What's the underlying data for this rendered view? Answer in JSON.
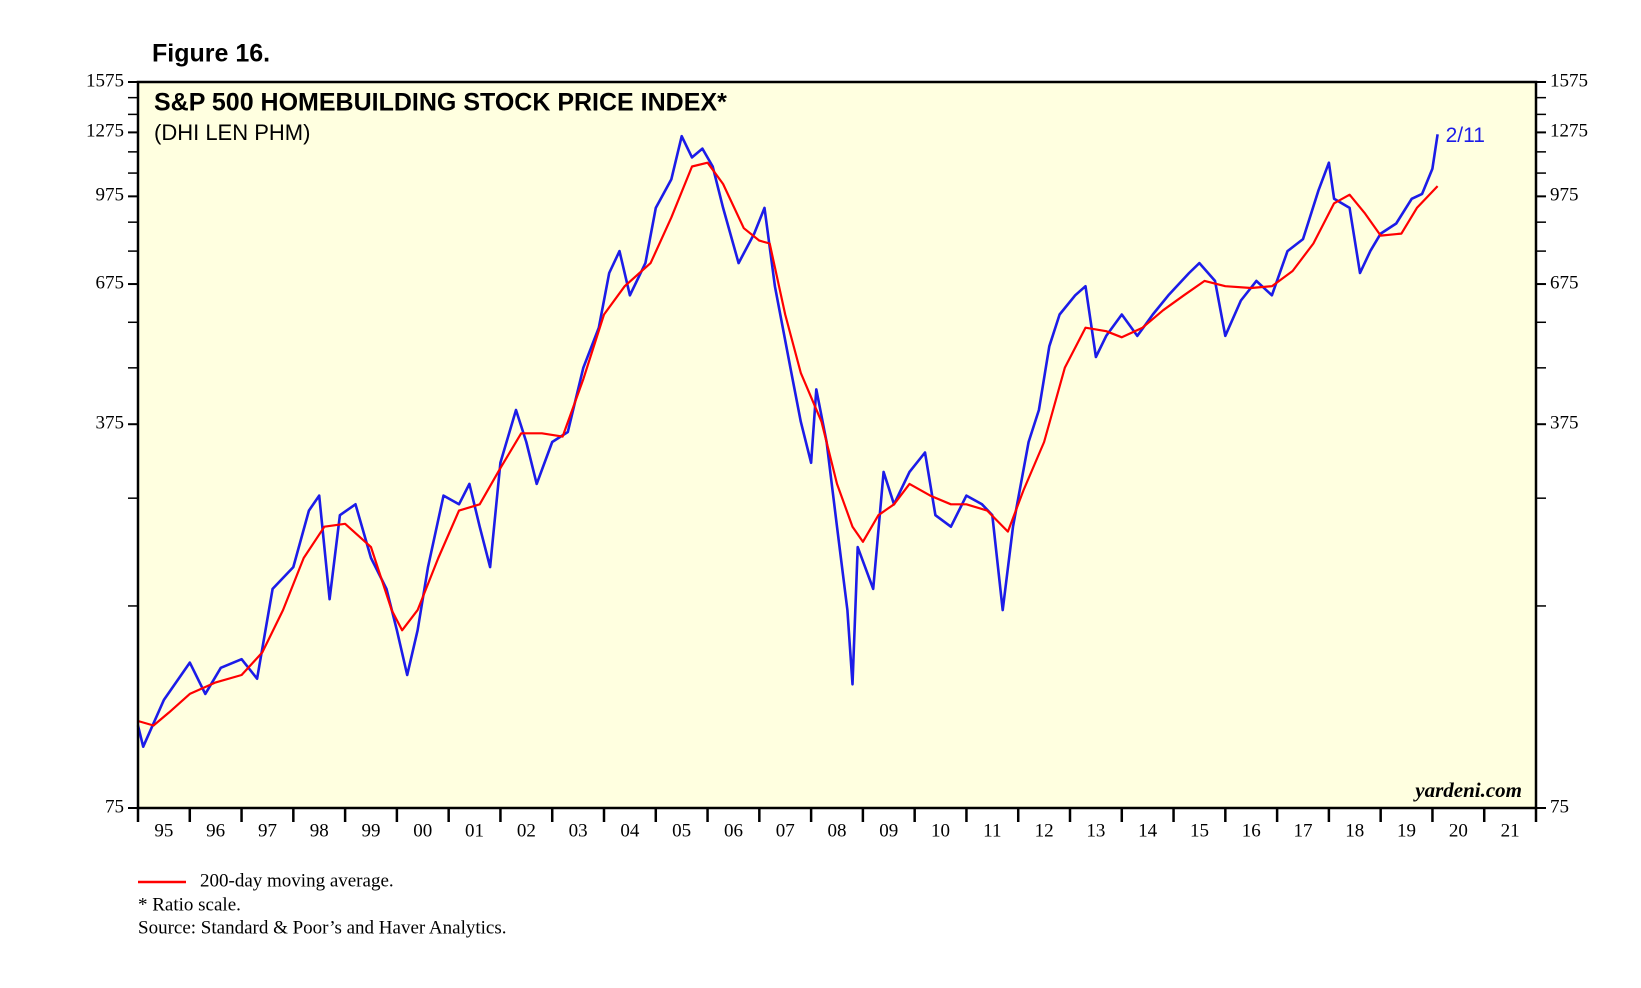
{
  "chart_data": {
    "type": "line",
    "figure_label": "Figure 16.",
    "title": "S&P 500 HOMEBUILDING STOCK PRICE INDEX*",
    "subtitle": "(DHI LEN PHM)",
    "annotation": "2/11",
    "watermark": "yardeni.com",
    "notes": [
      "* Ratio scale.",
      "Source: Standard & Poor’s and Haver Analytics."
    ],
    "log_scale": true,
    "background": "#ffffe0",
    "xlim": [
      1995,
      2022
    ],
    "xticks": [
      {
        "value": 1995.5,
        "label": "95"
      },
      {
        "value": 1996.5,
        "label": "96"
      },
      {
        "value": 1997.5,
        "label": "97"
      },
      {
        "value": 1998.5,
        "label": "98"
      },
      {
        "value": 1999.5,
        "label": "99"
      },
      {
        "value": 2000.5,
        "label": "00"
      },
      {
        "value": 2001.5,
        "label": "01"
      },
      {
        "value": 2002.5,
        "label": "02"
      },
      {
        "value": 2003.5,
        "label": "03"
      },
      {
        "value": 2004.5,
        "label": "04"
      },
      {
        "value": 2005.5,
        "label": "05"
      },
      {
        "value": 2006.5,
        "label": "06"
      },
      {
        "value": 2007.5,
        "label": "07"
      },
      {
        "value": 2008.5,
        "label": "08"
      },
      {
        "value": 2009.5,
        "label": "09"
      },
      {
        "value": 2010.5,
        "label": "10"
      },
      {
        "value": 2011.5,
        "label": "11"
      },
      {
        "value": 2012.5,
        "label": "12"
      },
      {
        "value": 2013.5,
        "label": "13"
      },
      {
        "value": 2014.5,
        "label": "14"
      },
      {
        "value": 2015.5,
        "label": "15"
      },
      {
        "value": 2016.5,
        "label": "16"
      },
      {
        "value": 2017.5,
        "label": "17"
      },
      {
        "value": 2018.5,
        "label": "18"
      },
      {
        "value": 2019.5,
        "label": "19"
      },
      {
        "value": 2020.5,
        "label": "20"
      },
      {
        "value": 2021.5,
        "label": "21"
      }
    ],
    "xminor_ticks": [
      1995,
      1996,
      1997,
      1998,
      1999,
      2000,
      2001,
      2002,
      2003,
      2004,
      2005,
      2006,
      2007,
      2008,
      2009,
      2010,
      2011,
      2012,
      2013,
      2014,
      2015,
      2016,
      2017,
      2018,
      2019,
      2020,
      2021,
      2022
    ],
    "ylim": [
      75,
      1575
    ],
    "yticks": [
      75,
      375,
      675,
      975,
      1275,
      1575
    ],
    "yminor_ticks": [
      175,
      275,
      475,
      575,
      775,
      875,
      1075,
      1175,
      1375,
      1475
    ],
    "series": [
      {
        "name": "S&P 500 Homebuilding",
        "color": "#1c1ce8",
        "in_legend": false,
        "x": [
          1995.0,
          1995.1,
          1995.5,
          1996.0,
          1996.3,
          1996.6,
          1997.0,
          1997.3,
          1997.6,
          1998.0,
          1998.3,
          1998.5,
          1998.7,
          1998.9,
          1999.2,
          1999.5,
          1999.8,
          2000.0,
          2000.2,
          2000.4,
          2000.6,
          2000.9,
          2001.2,
          2001.4,
          2001.6,
          2001.8,
          2002.0,
          2002.3,
          2002.5,
          2002.7,
          2003.0,
          2003.3,
          2003.6,
          2003.9,
          2004.1,
          2004.3,
          2004.5,
          2004.8,
          2005.0,
          2005.3,
          2005.5,
          2005.7,
          2005.9,
          2006.1,
          2006.3,
          2006.6,
          2006.9,
          2007.1,
          2007.3,
          2007.6,
          2007.8,
          2008.0,
          2008.1,
          2008.3,
          2008.5,
          2008.7,
          2008.8,
          2008.9,
          2009.2,
          2009.4,
          2009.6,
          2009.9,
          2010.2,
          2010.4,
          2010.7,
          2011.0,
          2011.3,
          2011.5,
          2011.7,
          2011.9,
          2012.2,
          2012.4,
          2012.6,
          2012.8,
          2013.1,
          2013.3,
          2013.5,
          2013.7,
          2014.0,
          2014.3,
          2014.6,
          2014.9,
          2015.3,
          2015.5,
          2015.8,
          2016.0,
          2016.3,
          2016.6,
          2016.9,
          2017.2,
          2017.5,
          2017.8,
          2018.0,
          2018.1,
          2018.4,
          2018.6,
          2018.8,
          2019.0,
          2019.3,
          2019.6,
          2019.8,
          2020.0,
          2020.1
        ],
        "values": [
          106,
          97,
          118,
          138,
          121,
          135,
          140,
          129,
          188,
          206,
          261,
          278,
          180,
          256,
          268,
          214,
          188,
          158,
          131,
          158,
          206,
          278,
          268,
          292,
          244,
          206,
          319,
          398,
          348,
          292,
          348,
          363,
          475,
          562,
          707,
          775,
          644,
          737,
          929,
          1047,
          1255,
          1148,
          1191,
          1105,
          929,
          737,
          834,
          929,
          669,
          475,
          379,
          319,
          434,
          348,
          244,
          172,
          126,
          224,
          188,
          307,
          268,
          307,
          333,
          256,
          244,
          278,
          268,
          256,
          172,
          244,
          348,
          398,
          520,
          594,
          644,
          669,
          497,
          543,
          594,
          543,
          594,
          644,
          707,
          737,
          684,
          543,
          630,
          684,
          644,
          775,
          815,
          1000,
          1123,
          965,
          929,
          707,
          775,
          834,
          870,
          965,
          985,
          1095,
          1265
        ]
      },
      {
        "name": "200-day moving average.",
        "color": "#ff0000",
        "in_legend": true,
        "x": [
          1995.0,
          1995.3,
          1995.6,
          1996.0,
          1996.5,
          1997.0,
          1997.4,
          1997.8,
          1998.2,
          1998.6,
          1999.0,
          1999.5,
          1999.9,
          2000.1,
          2000.4,
          2000.8,
          2001.2,
          2001.6,
          2002.0,
          2002.4,
          2002.8,
          2003.2,
          2003.6,
          2004.0,
          2004.4,
          2004.9,
          2005.3,
          2005.7,
          2006.0,
          2006.3,
          2006.7,
          2007.0,
          2007.2,
          2007.5,
          2007.8,
          2008.2,
          2008.5,
          2008.8,
          2009.0,
          2009.3,
          2009.6,
          2009.9,
          2010.3,
          2010.7,
          2011.0,
          2011.4,
          2011.8,
          2012.1,
          2012.5,
          2012.9,
          2013.3,
          2013.7,
          2014.0,
          2014.4,
          2014.8,
          2015.2,
          2015.6,
          2016.0,
          2016.5,
          2016.9,
          2017.3,
          2017.7,
          2018.1,
          2018.4,
          2018.7,
          2019.0,
          2019.4,
          2019.7,
          2020.1
        ],
        "values": [
          108,
          106,
          112,
          121,
          127,
          131,
          144,
          172,
          214,
          244,
          247,
          224,
          172,
          158,
          172,
          214,
          261,
          268,
          312,
          361,
          361,
          356,
          453,
          594,
          669,
          737,
          892,
          1105,
          1123,
          1027,
          853,
          810,
          800,
          594,
          465,
          379,
          292,
          244,
          229,
          256,
          268,
          292,
          278,
          268,
          268,
          261,
          239,
          284,
          348,
          475,
          562,
          554,
          540,
          562,
          605,
          644,
          684,
          669,
          664,
          669,
          713,
          800,
          947,
          982,
          907,
          827,
          834,
          929,
          1018
        ]
      }
    ]
  }
}
